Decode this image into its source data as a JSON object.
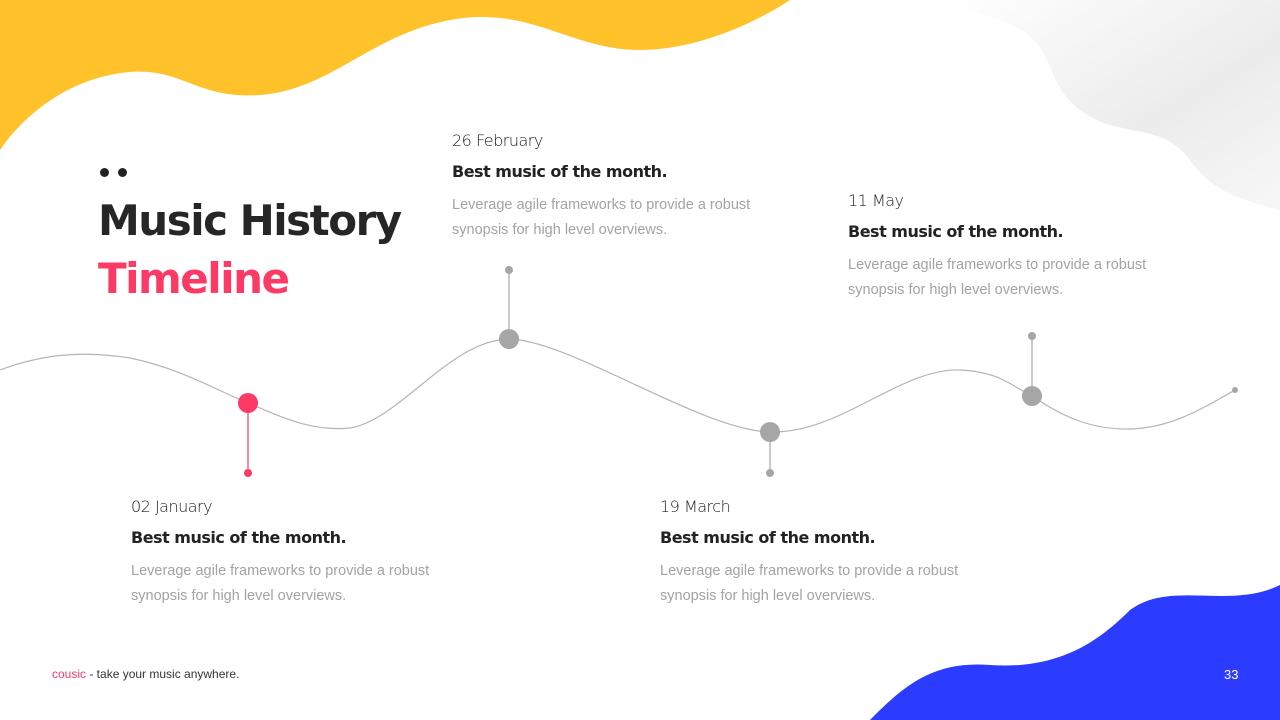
{
  "title": {
    "line1": "Music History",
    "line2": "Timeline"
  },
  "events": [
    {
      "date": "02 January",
      "heading": "Best music of the month.",
      "description": "Leverage agile frameworks to provide a robust synopsis for high level overviews.",
      "highlighted": true
    },
    {
      "date": "26 February",
      "heading": "Best music of the month.",
      "description": "Leverage agile frameworks to provide a robust synopsis for high level overviews.",
      "highlighted": false
    },
    {
      "date": "19 March",
      "heading": "Best music of the month.",
      "description": "Leverage agile frameworks to provide a robust synopsis for high level overviews.",
      "highlighted": false
    },
    {
      "date": "11 May",
      "heading": "Best music of the month.",
      "description": "Leverage agile frameworks to provide a robust synopsis for high level overviews.",
      "highlighted": false
    }
  ],
  "footer": {
    "brand": "cousic",
    "tagline": " - take your music anywhere."
  },
  "page_number": "33",
  "colors": {
    "accent": "#fb3a65",
    "yellow": "#ffc22b",
    "blue": "#2b3bff",
    "marker": "#a6a6a6"
  }
}
